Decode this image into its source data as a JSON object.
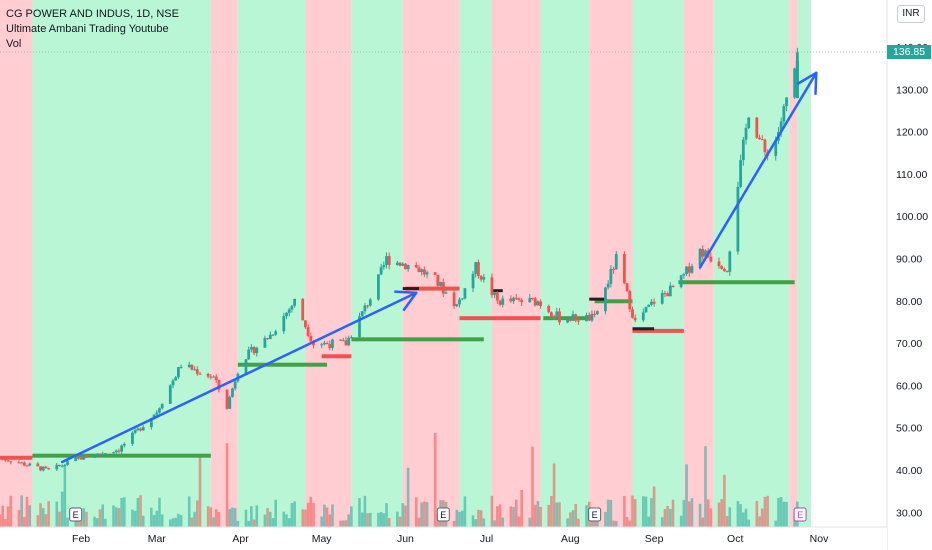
{
  "header": {
    "symbol_line": "CG POWER AND INDUS, 1D, NSE",
    "indicator_line": "Ultimate Ambani Trading Youtube",
    "volume_line": "Vol"
  },
  "currency_label": "INR",
  "last_price_label": "136.85",
  "colors": {
    "up": "#26a69a",
    "down": "#ef5350",
    "bull_zone": "#b9f6d6",
    "bear_zone": "#ffcdd2",
    "trend_arrow": "#2962ff",
    "support_line": "#43a047",
    "resistance_line": "#ef5350"
  },
  "chart_data": {
    "type": "candlestick",
    "title": "CG POWER AND INDUS, 1D, NSE",
    "y_axis": {
      "range": [
        29,
        142
      ],
      "ticks": [
        "140.00",
        "130.00",
        "120.00",
        "110.00",
        "100.00",
        "90.00",
        "80.00",
        "70.00",
        "60.00",
        "50.00",
        "40.00",
        "30.00"
      ]
    },
    "x_axis": {
      "ticks": [
        "Feb",
        "Mar",
        "Apr",
        "May",
        "Jun",
        "Jul",
        "Aug",
        "Sep",
        "Oct",
        "Nov"
      ]
    },
    "last_price": 136.85,
    "trend_arrows": [
      {
        "from": [
          "Feb",
          42
        ],
        "to": [
          "Jun",
          82
        ]
      },
      {
        "from": [
          "Sep",
          88
        ],
        "to": [
          "Oct",
          134
        ]
      }
    ],
    "earnings_markers": [
      "E",
      "E",
      "E",
      "E"
    ],
    "price_path": [
      {
        "date": "2023-01-02",
        "close": 43
      },
      {
        "date": "2023-01-20",
        "close": 40
      },
      {
        "date": "2023-02-01",
        "close": 43
      },
      {
        "date": "2023-02-15",
        "close": 45
      },
      {
        "date": "2023-03-01",
        "close": 54
      },
      {
        "date": "2023-03-10",
        "close": 65
      },
      {
        "date": "2023-03-22",
        "close": 62
      },
      {
        "date": "2023-03-27",
        "close": 55
      },
      {
        "date": "2023-04-01",
        "close": 66
      },
      {
        "date": "2023-04-12",
        "close": 72
      },
      {
        "date": "2023-04-21",
        "close": 80
      },
      {
        "date": "2023-04-28",
        "close": 70
      },
      {
        "date": "2023-05-10",
        "close": 70
      },
      {
        "date": "2023-05-20",
        "close": 82
      },
      {
        "date": "2023-05-25",
        "close": 90
      },
      {
        "date": "2023-06-05",
        "close": 88
      },
      {
        "date": "2023-06-12",
        "close": 85
      },
      {
        "date": "2023-06-20",
        "close": 79
      },
      {
        "date": "2023-06-27",
        "close": 88
      },
      {
        "date": "2023-07-05",
        "close": 80
      },
      {
        "date": "2023-07-20",
        "close": 80
      },
      {
        "date": "2023-07-28",
        "close": 76
      },
      {
        "date": "2023-08-10",
        "close": 76
      },
      {
        "date": "2023-08-18",
        "close": 90
      },
      {
        "date": "2023-08-25",
        "close": 75
      },
      {
        "date": "2023-09-01",
        "close": 80
      },
      {
        "date": "2023-09-10",
        "close": 84
      },
      {
        "date": "2023-09-18",
        "close": 92
      },
      {
        "date": "2023-09-28",
        "close": 88
      },
      {
        "date": "2023-10-02",
        "close": 108
      },
      {
        "date": "2023-10-06",
        "close": 125
      },
      {
        "date": "2023-10-12",
        "close": 115
      },
      {
        "date": "2023-10-16",
        "close": 118
      },
      {
        "date": "2023-10-19",
        "close": 125
      },
      {
        "date": "2023-10-24",
        "close": 136.85
      }
    ],
    "horizontal_levels": [
      {
        "from": "2023-01-02",
        "to": "2023-01-14",
        "price": 43,
        "color": "red"
      },
      {
        "from": "2023-01-14",
        "to": "2023-03-21",
        "price": 43.5,
        "color": "green"
      },
      {
        "from": "2023-03-31",
        "to": "2023-05-03",
        "price": 65,
        "color": "green"
      },
      {
        "from": "2023-05-01",
        "to": "2023-05-12",
        "price": 67,
        "color": "red"
      },
      {
        "from": "2023-05-12",
        "to": "2023-06-30",
        "price": 71,
        "color": "green"
      },
      {
        "from": "2023-06-01",
        "to": "2023-06-21",
        "price": 83,
        "color": "red"
      },
      {
        "from": "2023-06-21",
        "to": "2023-07-21",
        "price": 76,
        "color": "red"
      },
      {
        "from": "2023-07-22",
        "to": "2023-08-08",
        "price": 76,
        "color": "green"
      },
      {
        "from": "2023-08-10",
        "to": "2023-08-24",
        "price": 80,
        "color": "green"
      },
      {
        "from": "2023-08-24",
        "to": "2023-09-12",
        "price": 73,
        "color": "red"
      },
      {
        "from": "2023-09-10",
        "to": "2023-10-23",
        "price": 84.5,
        "color": "green"
      }
    ],
    "zones": [
      {
        "from": "2023-01-02",
        "to": "2023-01-14",
        "type": "bear"
      },
      {
        "from": "2023-01-14",
        "to": "2023-03-21",
        "type": "bull"
      },
      {
        "from": "2023-03-21",
        "to": "2023-03-31",
        "type": "bear"
      },
      {
        "from": "2023-03-31",
        "to": "2023-04-25",
        "type": "bull"
      },
      {
        "from": "2023-04-25",
        "to": "2023-05-12",
        "type": "bear"
      },
      {
        "from": "2023-05-12",
        "to": "2023-05-31",
        "type": "bull"
      },
      {
        "from": "2023-05-31",
        "to": "2023-06-21",
        "type": "bear"
      },
      {
        "from": "2023-06-21",
        "to": "2023-07-03",
        "type": "bull"
      },
      {
        "from": "2023-07-03",
        "to": "2023-07-21",
        "type": "bear"
      },
      {
        "from": "2023-07-21",
        "to": "2023-08-08",
        "type": "bull"
      },
      {
        "from": "2023-08-08",
        "to": "2023-08-24",
        "type": "bear"
      },
      {
        "from": "2023-08-24",
        "to": "2023-09-12",
        "type": "bull"
      },
      {
        "from": "2023-09-12",
        "to": "2023-09-23",
        "type": "bear"
      },
      {
        "from": "2023-09-23",
        "to": "2023-10-21",
        "type": "bull"
      },
      {
        "from": "2023-10-21",
        "to": "2023-10-24",
        "type": "bear"
      },
      {
        "from": "2023-10-24",
        "to": "2023-10-29",
        "type": "bull"
      }
    ]
  }
}
